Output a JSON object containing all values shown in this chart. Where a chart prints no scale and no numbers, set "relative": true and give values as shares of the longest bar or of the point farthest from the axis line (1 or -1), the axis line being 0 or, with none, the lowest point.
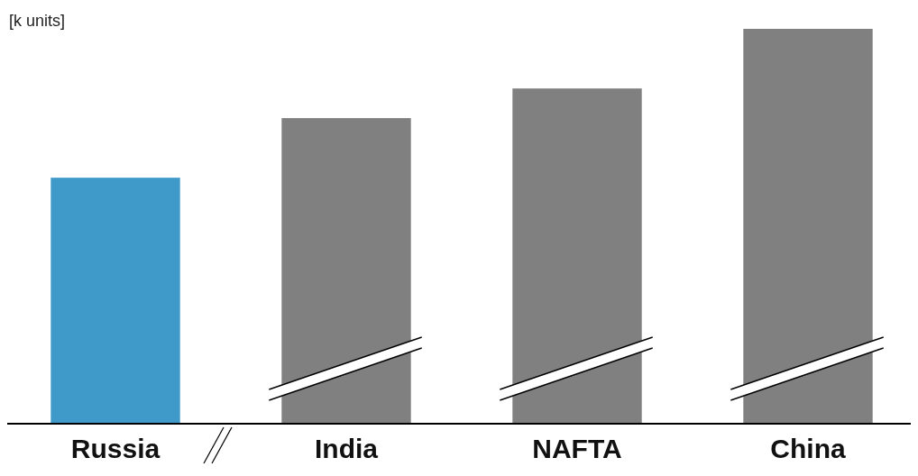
{
  "chart_data": {
    "type": "bar",
    "ylabel": "[k units]",
    "relative": true,
    "categories": [
      "Russia",
      "India",
      "NAFTA",
      "China"
    ],
    "values": [
      0.623,
      0.774,
      0.849,
      1
    ],
    "colors": [
      "#3f99c9",
      "#808080",
      "#808080",
      "#808080"
    ],
    "data_labels": false
  }
}
